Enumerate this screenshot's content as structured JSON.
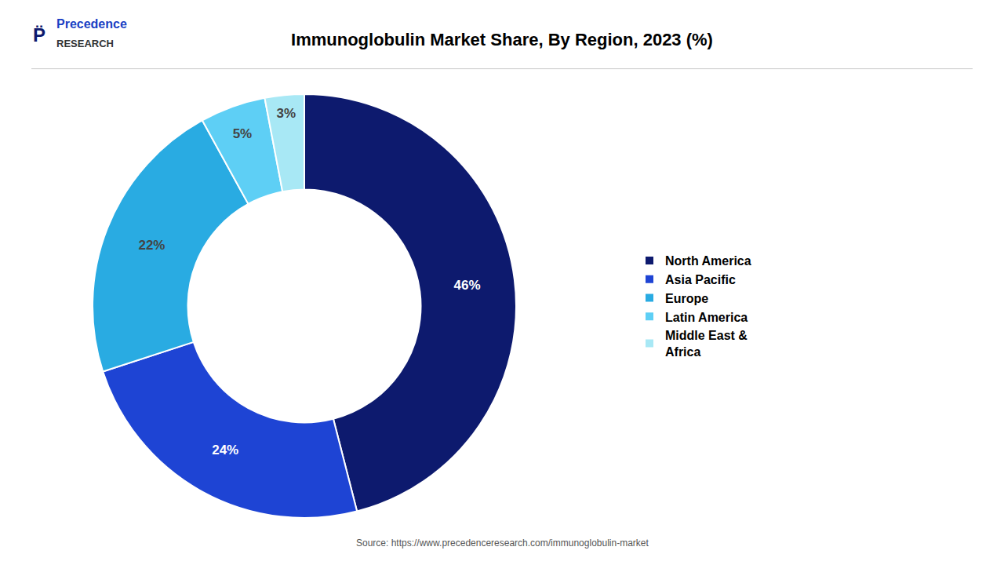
{
  "chart_data": {
    "type": "donut",
    "title": "Immunoglobulin Market Share, By Region, 2023 (%)",
    "categories": [
      "North America",
      "Asia Pacific",
      "Europe",
      "Latin America",
      "Middle East &\nAfrica"
    ],
    "values": [
      46,
      24,
      22,
      5,
      3
    ],
    "value_labels": [
      "46%",
      "24%",
      "22%",
      "5%",
      "3%"
    ],
    "colors": [
      "#0d1a6e",
      "#1e44d4",
      "#29abe2",
      "#5ecff5",
      "#a8e8f5"
    ],
    "data_labels": true,
    "legend": "right",
    "annotations": [
      "Source: https://www.precedenceresearch.com/immunoglobulin-market",
      "P̈",
      "Precedence",
      "RESEARCH"
    ]
  }
}
